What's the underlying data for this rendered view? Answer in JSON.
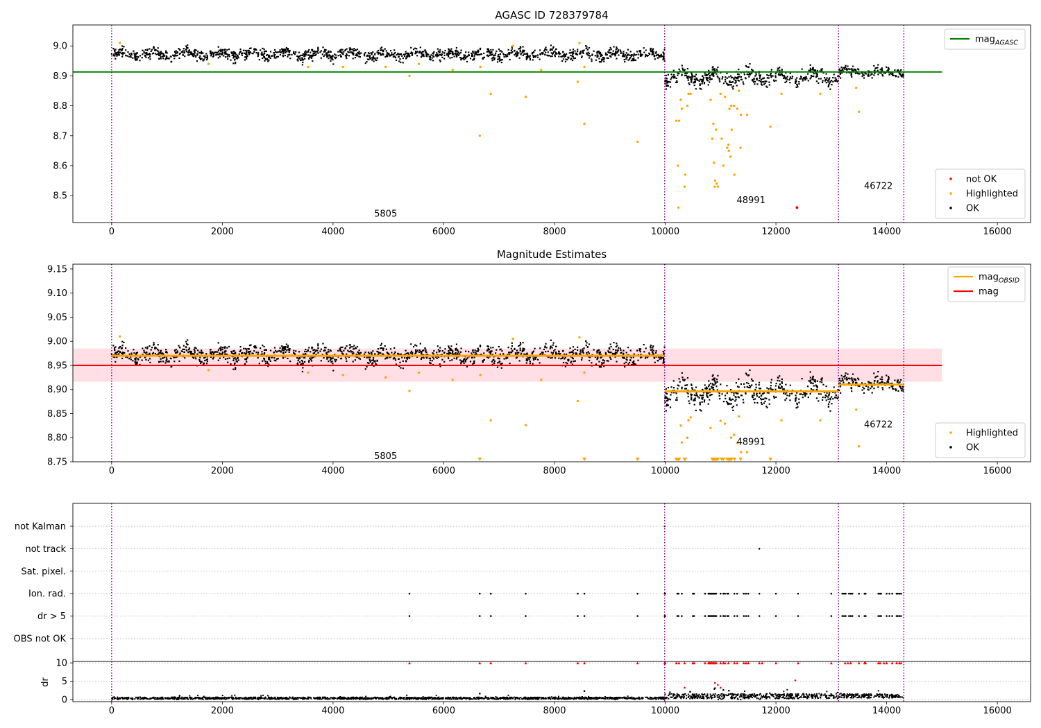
{
  "figure": {
    "colors": {
      "ok": "#000000",
      "highlighted": "#ffa500",
      "not_ok": "#ff0000",
      "agasc_line": "#008000",
      "mag_line": "#ff0000",
      "obsid_line": "#ffa500",
      "band": "#ffc0cb",
      "obsid_boundary": "#800080",
      "grid": "#b0b0b0"
    }
  },
  "chart_data": [
    {
      "type": "scatter",
      "id": "agasc",
      "title": "AGASC ID 728379784",
      "xlim": [
        -700,
        16600
      ],
      "ylim": [
        8.41,
        9.07
      ],
      "xticks": [
        0,
        2000,
        4000,
        6000,
        8000,
        10000,
        12000,
        14000,
        16000
      ],
      "yticks": [
        8.5,
        8.6,
        8.7,
        8.8,
        8.9,
        9.0
      ],
      "xtick_labels": [
        "0",
        "2000",
        "4000",
        "6000",
        "8000",
        "10000",
        "12000",
        "14000",
        "16000"
      ],
      "ytick_labels": [
        "8.5",
        "8.6",
        "8.7",
        "8.8",
        "8.9",
        "9.0"
      ],
      "obsid_boundaries": [
        0,
        9990,
        13130,
        14310
      ],
      "obsid_labels": [
        {
          "text": "5805",
          "x": 4950,
          "y": 8.43
        },
        {
          "text": "48991",
          "x": 11550,
          "y": 8.475
        },
        {
          "text": "46722",
          "x": 13850,
          "y": 8.522
        }
      ],
      "hlines": [
        {
          "name": "mag_agasc",
          "y": 8.913,
          "x0": -700,
          "x1": 15000,
          "color": "#008000"
        }
      ],
      "segments": [
        {
          "x0": 0,
          "x1": 9990,
          "center": 8.972,
          "spread": 0.013,
          "wave": 0.008
        },
        {
          "x0": 9990,
          "x1": 13130,
          "center": 8.895,
          "spread": 0.016,
          "wave": 0.014
        },
        {
          "x0": 13130,
          "x1": 14310,
          "center": 8.912,
          "spread": 0.011,
          "wave": 0.006
        }
      ],
      "highlighted": [
        [
          150,
          9.01
        ],
        [
          1750,
          8.94
        ],
        [
          3550,
          8.93
        ],
        [
          4180,
          8.93
        ],
        [
          4950,
          8.93
        ],
        [
          5380,
          8.9
        ],
        [
          5550,
          8.94
        ],
        [
          6160,
          8.92
        ],
        [
          6650,
          8.7
        ],
        [
          6660,
          8.93
        ],
        [
          6850,
          8.84
        ],
        [
          7250,
          9.0
        ],
        [
          7480,
          8.83
        ],
        [
          7760,
          8.92
        ],
        [
          8420,
          8.88
        ],
        [
          8450,
          9.01
        ],
        [
          8540,
          8.74
        ],
        [
          8540,
          8.93
        ],
        [
          9500,
          8.68
        ],
        [
          10200,
          8.75
        ],
        [
          10230,
          8.6
        ],
        [
          10240,
          8.46
        ],
        [
          10250,
          8.75
        ],
        [
          10280,
          8.82
        ],
        [
          10300,
          8.79
        ],
        [
          10350,
          8.53
        ],
        [
          10360,
          8.57
        ],
        [
          10400,
          8.8
        ],
        [
          10420,
          8.84
        ],
        [
          10460,
          8.84
        ],
        [
          10820,
          8.82
        ],
        [
          10850,
          8.69
        ],
        [
          10870,
          8.74
        ],
        [
          10880,
          8.61
        ],
        [
          10890,
          8.53
        ],
        [
          10900,
          8.55
        ],
        [
          10920,
          8.72
        ],
        [
          10930,
          8.54
        ],
        [
          10950,
          8.53
        ],
        [
          11000,
          8.84
        ],
        [
          11020,
          8.69
        ],
        [
          11050,
          8.6
        ],
        [
          11080,
          8.83
        ],
        [
          11120,
          8.66
        ],
        [
          11140,
          8.67
        ],
        [
          11150,
          8.65
        ],
        [
          11160,
          8.79
        ],
        [
          11180,
          8.63
        ],
        [
          11190,
          8.8
        ],
        [
          11200,
          8.72
        ],
        [
          11240,
          8.8
        ],
        [
          11250,
          8.57
        ],
        [
          11300,
          8.79
        ],
        [
          11330,
          8.85
        ],
        [
          11360,
          8.66
        ],
        [
          11370,
          8.77
        ],
        [
          11480,
          8.77
        ],
        [
          11900,
          8.73
        ],
        [
          12100,
          8.84
        ],
        [
          12800,
          8.84
        ],
        [
          13450,
          8.86
        ],
        [
          13500,
          8.78
        ]
      ],
      "not_ok": [
        [
          12380,
          8.46
        ]
      ],
      "legends": [
        {
          "position": "upper right",
          "entries": [
            {
              "label": "mag",
              "sub": "AGASC",
              "kind": "line",
              "color": "#008000"
            }
          ]
        },
        {
          "position": "lower right",
          "entries": [
            {
              "label": "not OK",
              "kind": "marker",
              "color": "#ff0000"
            },
            {
              "label": "Highlighted",
              "kind": "marker",
              "color": "#ffa500"
            },
            {
              "label": "OK",
              "kind": "marker",
              "color": "#000000"
            }
          ]
        }
      ]
    },
    {
      "type": "scatter",
      "id": "estimates",
      "title": "Magnitude Estimates",
      "xlim": [
        -700,
        16600
      ],
      "ylim": [
        8.75,
        9.16
      ],
      "xticks": [
        0,
        2000,
        4000,
        6000,
        8000,
        10000,
        12000,
        14000,
        16000
      ],
      "yticks": [
        8.75,
        8.8,
        8.85,
        8.9,
        8.95,
        9.0,
        9.05,
        9.1,
        9.15
      ],
      "xtick_labels": [
        "0",
        "2000",
        "4000",
        "6000",
        "8000",
        "10000",
        "12000",
        "14000",
        "16000"
      ],
      "ytick_labels": [
        "8.75",
        "8.80",
        "8.85",
        "8.90",
        "8.95",
        "9.00",
        "9.05",
        "9.10",
        "9.15"
      ],
      "obsid_boundaries": [
        0,
        9990,
        13130,
        14310
      ],
      "obsid_labels": [
        {
          "text": "5805",
          "x": 4950,
          "y": 8.756
        },
        {
          "text": "48991",
          "x": 11550,
          "y": 8.785
        },
        {
          "text": "46722",
          "x": 13850,
          "y": 8.821
        }
      ],
      "band": {
        "x0": -700,
        "x1": 15000,
        "y0": 8.916,
        "y1": 8.985
      },
      "hlines": [
        {
          "name": "mag",
          "y": 8.95,
          "x0": -700,
          "x1": 15000,
          "color": "#ff0000"
        }
      ],
      "obsid_means": [
        {
          "x0": 0,
          "x1": 9990,
          "y": 8.97
        },
        {
          "x0": 9990,
          "x1": 13130,
          "y": 8.896
        },
        {
          "x0": 13130,
          "x1": 14310,
          "y": 8.91
        }
      ],
      "segments": [
        {
          "x0": 0,
          "x1": 9990,
          "center": 8.972,
          "spread": 0.013,
          "wave": 0.008
        },
        {
          "x0": 9990,
          "x1": 13130,
          "center": 8.895,
          "spread": 0.016,
          "wave": 0.014
        },
        {
          "x0": 13130,
          "x1": 14310,
          "center": 8.912,
          "spread": 0.011,
          "wave": 0.006
        }
      ],
      "highlighted": [
        [
          150,
          9.01
        ],
        [
          1750,
          8.94
        ],
        [
          3550,
          8.935
        ],
        [
          4180,
          8.93
        ],
        [
          4950,
          8.925
        ],
        [
          5380,
          8.897
        ],
        [
          5550,
          8.935
        ],
        [
          6160,
          8.92
        ],
        [
          6660,
          8.93
        ],
        [
          6850,
          8.836
        ],
        [
          7250,
          9.005
        ],
        [
          7480,
          8.826
        ],
        [
          7760,
          8.92
        ],
        [
          8420,
          8.876
        ],
        [
          8450,
          9.008
        ],
        [
          8540,
          8.935
        ],
        [
          10280,
          8.825
        ],
        [
          10300,
          8.79
        ],
        [
          10400,
          8.8
        ],
        [
          10420,
          8.836
        ],
        [
          10460,
          8.842
        ],
        [
          10820,
          8.82
        ],
        [
          11000,
          8.835
        ],
        [
          11080,
          8.829
        ],
        [
          11190,
          8.8
        ],
        [
          11240,
          8.806
        ],
        [
          11300,
          8.789
        ],
        [
          11330,
          8.844
        ],
        [
          11370,
          8.77
        ],
        [
          11480,
          8.77
        ],
        [
          12100,
          8.836
        ],
        [
          12800,
          8.836
        ],
        [
          13450,
          8.858
        ],
        [
          13500,
          8.782
        ]
      ],
      "lower_limits": [
        6650,
        8540,
        9500,
        10200,
        10230,
        10240,
        10250,
        10350,
        10360,
        10850,
        10870,
        10880,
        10890,
        10900,
        10920,
        10930,
        10950,
        11020,
        11050,
        11120,
        11140,
        11150,
        11160,
        11180,
        11200,
        11250,
        11360,
        11900
      ],
      "legends": [
        {
          "position": "upper right",
          "entries": [
            {
              "label": "mag",
              "sub": "OBSID",
              "kind": "line",
              "color": "#ffa500"
            },
            {
              "label": "mag",
              "kind": "line",
              "color": "#ff0000"
            }
          ]
        },
        {
          "position": "lower right",
          "entries": [
            {
              "label": "Highlighted",
              "kind": "marker",
              "color": "#ffa500"
            },
            {
              "label": "OK",
              "kind": "marker",
              "color": "#000000"
            }
          ]
        }
      ]
    },
    {
      "type": "scatter",
      "id": "flags",
      "xlim": [
        -700,
        16600
      ],
      "categories": [
        "not Kalman",
        "not track",
        "Sat. pixel.",
        "Ion. rad.",
        "dr > 5",
        "OBS not OK"
      ],
      "obsid_boundaries": [
        0,
        9990,
        13130,
        14310
      ],
      "points": {
        "not Kalman": [
          9990
        ],
        "not track": [
          11700
        ],
        "Sat. pixel.": [],
        "Ion. rad.": [
          5380,
          6650,
          6850,
          7480,
          8420,
          8540,
          9500,
          9990,
          10000,
          10220,
          10240,
          10300,
          10500,
          10520,
          10720,
          10780,
          10800,
          10820,
          10840,
          10860,
          10880,
          10900,
          10920,
          11000,
          11050,
          11080,
          11120,
          11140,
          11250,
          11300,
          11420,
          11460,
          11500,
          11700,
          12000,
          12400,
          13000,
          13200,
          13230,
          13260,
          13320,
          13350,
          13380,
          13500,
          13600,
          13620,
          13850,
          13880,
          13900,
          14000,
          14050,
          14100,
          14180,
          14200,
          14230,
          14260
        ],
        "dr > 5": [
          5380,
          6650,
          6850,
          7480,
          8420,
          8540,
          9500,
          9990,
          10000,
          10220,
          10240,
          10300,
          10500,
          10520,
          10720,
          10780,
          10800,
          10820,
          10840,
          10860,
          10880,
          10900,
          10920,
          11000,
          11050,
          11080,
          11120,
          11140,
          11250,
          11300,
          11420,
          11460,
          11500,
          11700,
          12000,
          12400,
          13000,
          13200,
          13230,
          13260,
          13320,
          13350,
          13380,
          13500,
          13600,
          13620,
          13850,
          13880,
          13900,
          14000,
          14050,
          14100,
          14180,
          14200,
          14230,
          14260
        ],
        "OBS not OK": []
      }
    },
    {
      "type": "scatter",
      "id": "dr",
      "ylabel": "dr",
      "xlim": [
        -700,
        16600
      ],
      "ylim": [
        -0.6,
        10.4
      ],
      "xticks": [
        0,
        2000,
        4000,
        6000,
        8000,
        10000,
        12000,
        14000,
        16000
      ],
      "yticks": [
        0,
        5,
        10
      ],
      "xtick_labels": [
        "0",
        "2000",
        "4000",
        "6000",
        "8000",
        "10000",
        "12000",
        "14000",
        "16000"
      ],
      "ytick_labels": [
        "0",
        "5",
        "10"
      ],
      "obsid_boundaries": [
        0,
        9990,
        13130,
        14310
      ],
      "noise_segments": [
        {
          "x0": 0,
          "x1": 9990,
          "mean": 0.25,
          "spread": 0.25
        },
        {
          "x0": 9990,
          "x1": 13130,
          "mean": 0.7,
          "spread": 0.6
        },
        {
          "x0": 13130,
          "x1": 14310,
          "mean": 0.8,
          "spread": 0.5
        }
      ],
      "clipped_points": [
        5380,
        6650,
        6850,
        7480,
        8420,
        8540,
        9500,
        9990,
        10000,
        10200,
        10250,
        10350,
        10500,
        10520,
        10720,
        10780,
        10800,
        10820,
        10840,
        10860,
        10880,
        10900,
        10920,
        11000,
        11050,
        11080,
        11140,
        11250,
        11300,
        11420,
        11460,
        11500,
        11700,
        11750,
        12000,
        12400,
        13000,
        13250,
        13300,
        13350,
        13500,
        13600,
        13620,
        13850,
        13880,
        13950,
        14000,
        14100,
        14180,
        14230,
        14260
      ],
      "red_points": [
        [
          10350,
          3.2
        ],
        [
          10900,
          4.5
        ],
        [
          10950,
          4.0
        ],
        [
          11000,
          3.2
        ],
        [
          12350,
          5.2
        ]
      ],
      "black_outliers": [
        [
          6650,
          1.6
        ],
        [
          8540,
          2.3
        ],
        [
          10450,
          2.1
        ],
        [
          10900,
          3.1
        ],
        [
          11050,
          2.6
        ],
        [
          11150,
          2.4
        ]
      ]
    }
  ]
}
